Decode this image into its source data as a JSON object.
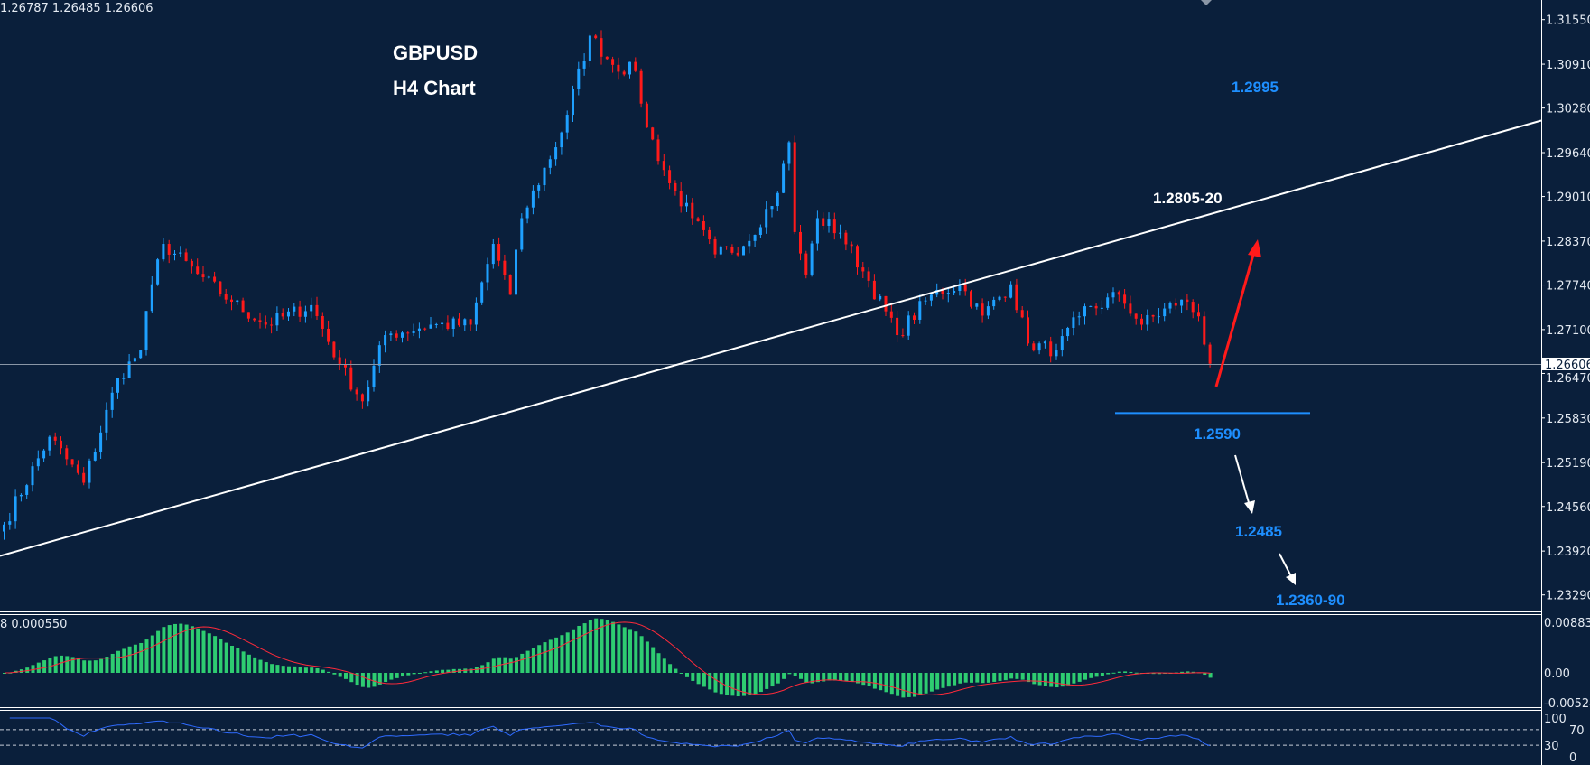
{
  "header": {
    "ohlc_text": "1.26787 1.26485 1.26606"
  },
  "colors": {
    "background": "#0a1f3b",
    "bull": "#1ea0ff",
    "bear": "#ff1a1a",
    "macd_hist": "#2ecc71",
    "macd_signal": "#ff2a3a",
    "rsi": "#2f6bff",
    "trendline": "#ffffff",
    "level_blue": "#1e8fff"
  },
  "chart_data": {
    "type": "candlestick",
    "title": "GBPUSD",
    "subtitle": "H4 Chart",
    "symbol": "GBPUSD",
    "timeframe": "H4",
    "current_price": "1.26606",
    "y_ticks": [
      "1.31550",
      "1.30910",
      "1.30280",
      "1.29640",
      "1.29010",
      "1.28370",
      "1.27740",
      "1.27100",
      "1.26470",
      "1.25830",
      "1.25190",
      "1.24560",
      "1.23920",
      "1.23290"
    ],
    "ylim": [
      1.2285,
      1.3183
    ],
    "candle_count": 213,
    "close_waypoints": [
      [
        0,
        1.243
      ],
      [
        8,
        1.2556
      ],
      [
        14,
        1.249
      ],
      [
        20,
        1.264
      ],
      [
        24,
        1.268
      ],
      [
        26,
        1.2775
      ],
      [
        28,
        1.2833
      ],
      [
        34,
        1.279
      ],
      [
        40,
        1.275
      ],
      [
        46,
        1.2717
      ],
      [
        54,
        1.2745
      ],
      [
        59,
        1.266
      ],
      [
        63,
        1.2607
      ],
      [
        67,
        1.2702
      ],
      [
        75,
        1.2717
      ],
      [
        82,
        1.2717
      ],
      [
        86,
        1.2833
      ],
      [
        89,
        1.276
      ],
      [
        91,
        1.287
      ],
      [
        98,
        1.2993
      ],
      [
        103,
        1.3132
      ],
      [
        107,
        1.309
      ],
      [
        111,
        1.3081
      ],
      [
        113,
        1.3
      ],
      [
        117,
        1.292
      ],
      [
        121,
        1.287
      ],
      [
        125,
        1.2818
      ],
      [
        130,
        1.283
      ],
      [
        136,
        1.2906
      ],
      [
        138,
        1.2979
      ],
      [
        139,
        1.285
      ],
      [
        141,
        1.2789
      ],
      [
        143,
        1.287
      ],
      [
        147,
        1.2849
      ],
      [
        152,
        1.278
      ],
      [
        157,
        1.2702
      ],
      [
        163,
        1.276
      ],
      [
        168,
        1.2775
      ],
      [
        172,
        1.273
      ],
      [
        177,
        1.2775
      ],
      [
        180,
        1.269
      ],
      [
        185,
        1.268
      ],
      [
        189,
        1.2729
      ],
      [
        196,
        1.276
      ],
      [
        200,
        1.2717
      ],
      [
        207,
        1.2753
      ],
      [
        210,
        1.2729
      ],
      [
        212,
        1.2661
      ]
    ],
    "trendline": {
      "from_price": 1.2385,
      "to_price": 1.301
    },
    "annotations": {
      "target_up": "1.2995",
      "resistance": "1.2805-20",
      "support_1": "1.2590",
      "support_2": "1.2485",
      "support_3": "1.2360-90"
    },
    "support_1_level": 1.259,
    "macd": {
      "label": "8 0.000550",
      "y_ticks": [
        "0.008836",
        "0.00",
        "-0.00524"
      ],
      "ylim": [
        -0.00524,
        0.008836
      ]
    },
    "rsi": {
      "y_ticks": [
        "100",
        "70",
        "30",
        "0"
      ],
      "levels": [
        70,
        30
      ],
      "ylim": [
        0,
        100
      ]
    }
  }
}
